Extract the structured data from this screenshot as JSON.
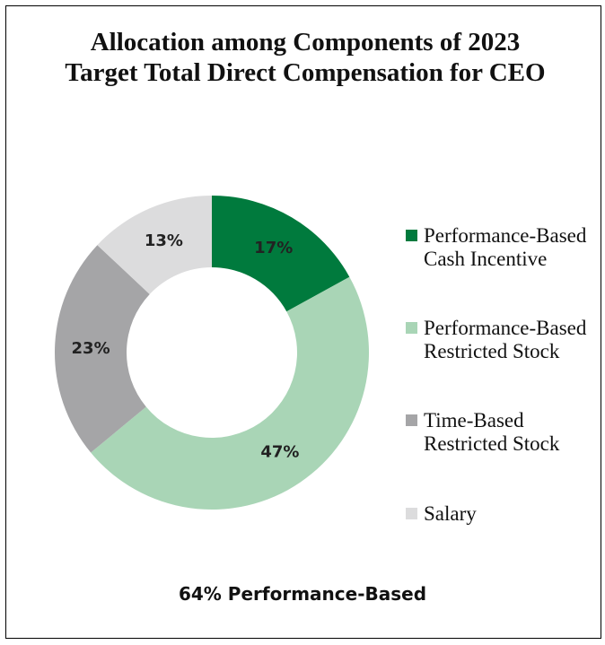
{
  "chart_data": {
    "type": "donut",
    "title": "Allocation among Components of 2023 Target Total Direct Compensation for CEO",
    "categories": [
      "Performance-Based Cash Incentive",
      "Performance-Based Restricted Stock",
      "Time-Based Restricted Stock",
      "Salary"
    ],
    "values": [
      17,
      47,
      23,
      13
    ],
    "value_labels": [
      "17%",
      "47%",
      "23%",
      "13%"
    ],
    "colors": [
      "#007a3d",
      "#a9d5b6",
      "#a5a5a7",
      "#dcdcdd"
    ],
    "legend": "right",
    "annotation": "64% Performance-Based"
  }
}
